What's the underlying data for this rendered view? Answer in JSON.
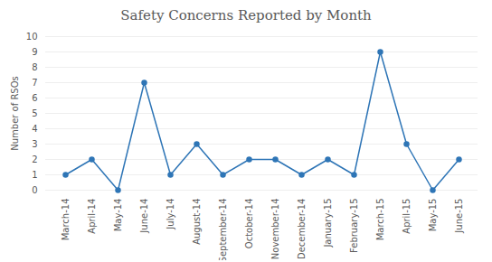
{
  "chart_data": {
    "type": "line",
    "title": "Safety Concerns Reported by Month",
    "ylabel": "Number of RSOs",
    "categories": [
      "March-14",
      "April-14",
      "May-14",
      "June-14",
      "July-14",
      "August-14",
      "September-14",
      "October-14",
      "November-14",
      "December-14",
      "January-15",
      "February-15",
      "March-15",
      "April-15",
      "May-15",
      "June-15"
    ],
    "values": [
      1,
      2,
      0,
      7,
      1,
      3,
      1,
      2,
      2,
      1,
      2,
      1,
      9,
      3,
      0,
      2
    ],
    "color": "#2E75B6",
    "marker": "circle",
    "ylim": [
      0,
      10
    ],
    "yticks": [
      0,
      1,
      2,
      3,
      4,
      5,
      6,
      7,
      8,
      9,
      10
    ],
    "grid": true
  }
}
